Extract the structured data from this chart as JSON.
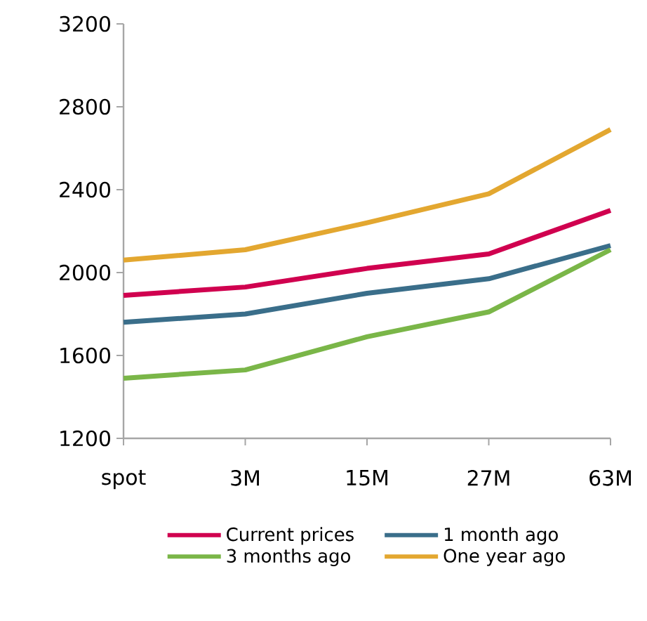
{
  "chart_data": {
    "type": "line",
    "categories": [
      "spot",
      "3M",
      "15M",
      "27M",
      "63M"
    ],
    "series": [
      {
        "name": "Current prices",
        "color": "#d0004f",
        "values": [
          1890,
          1930,
          2020,
          2090,
          2300
        ]
      },
      {
        "name": "1 month ago",
        "color": "#3a6e8a",
        "values": [
          1760,
          1800,
          1900,
          1970,
          2130
        ]
      },
      {
        "name": "3 months ago",
        "color": "#7ab648",
        "values": [
          1490,
          1530,
          1690,
          1810,
          2110
        ]
      },
      {
        "name": "One year ago",
        "color": "#e3a730",
        "values": [
          2060,
          2110,
          2240,
          2380,
          2690
        ]
      }
    ],
    "ylim": [
      1200,
      3200
    ],
    "yticks": [
      1200,
      1600,
      2000,
      2400,
      2800,
      3200
    ],
    "grid": false,
    "legend": "bottom",
    "marker": "none",
    "line_style": "solid"
  }
}
